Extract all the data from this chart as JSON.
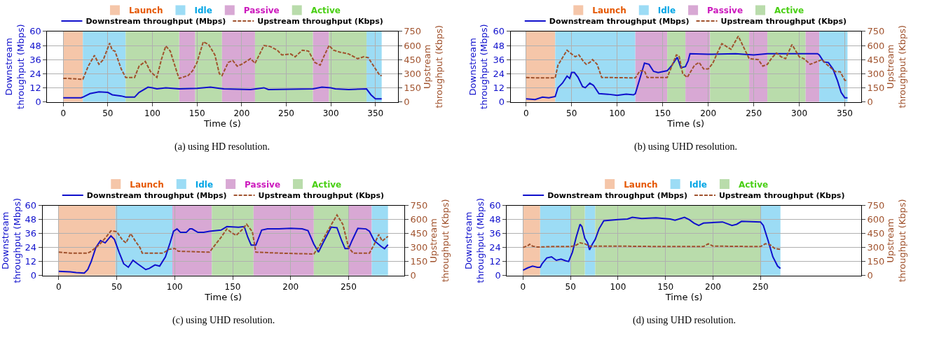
{
  "chart_data": [
    {
      "type": "line",
      "xlabel": "Time (s)",
      "ylabel": "Downstream throughput (Mbps)",
      "y2label": "Upstream throughput (Kbps)",
      "xlim": [
        -18,
        375
      ],
      "xticks": [
        0,
        50,
        100,
        150,
        200,
        250,
        300,
        350
      ],
      "ylim": [
        0,
        60
      ],
      "yticks": [
        0,
        12,
        24,
        36,
        48,
        60
      ],
      "y2lim": [
        0,
        750
      ],
      "y2ticks": [
        0,
        150,
        300,
        450,
        600,
        750
      ],
      "grid": true,
      "legend": "top",
      "annotations": [
        "(a) using HD resolution."
      ],
      "bands": [
        {
          "axis": "x",
          "from": 0,
          "to": 22,
          "label": "Launch",
          "color": "#f5c6a9"
        },
        {
          "axis": "x",
          "from": 22,
          "to": 70,
          "label": "Idle",
          "color": "#9cdcf5"
        },
        {
          "axis": "x",
          "from": 130,
          "to": 148,
          "label": "Passive",
          "color": "#d8a8d4"
        },
        {
          "axis": "x",
          "from": 70,
          "to": 130,
          "label": "Active",
          "color": "#b9dcab"
        },
        {
          "axis": "x",
          "from": 148,
          "to": 178,
          "color": "#b9dcab"
        },
        {
          "axis": "x",
          "from": 178,
          "to": 215,
          "color": "#d8a8d4"
        },
        {
          "axis": "x",
          "from": 215,
          "to": 280,
          "color": "#b9dcab"
        },
        {
          "axis": "x",
          "from": 280,
          "to": 298,
          "color": "#d8a8d4"
        },
        {
          "axis": "x",
          "from": 298,
          "to": 340,
          "color": "#b9dcab"
        },
        {
          "axis": "x",
          "from": 340,
          "to": 357,
          "color": "#9cdcf5"
        }
      ],
      "series": [
        {
          "name": "Downstream throughput (Mbps)",
          "color": "#1010cc",
          "line_style": "solid",
          "x": [
            0,
            20,
            22,
            30,
            40,
            50,
            55,
            65,
            70,
            80,
            85,
            95,
            100,
            105,
            115,
            130,
            150,
            165,
            175,
            180,
            210,
            225,
            230,
            280,
            290,
            300,
            305,
            320,
            340,
            345,
            350,
            357
          ],
          "values": [
            3.5,
            3.5,
            4,
            7,
            8.5,
            8,
            6,
            5,
            4,
            4,
            8,
            12.5,
            12,
            11,
            12,
            11,
            11.5,
            12.5,
            11.5,
            11,
            10.5,
            12,
            10.5,
            11,
            12.5,
            12,
            11,
            10.5,
            11,
            6,
            2.5,
            2.5
          ]
        },
        {
          "name": "Upstream throughput (Kbps)",
          "color": "#a0522d",
          "line_style": "dashed",
          "axis": "y2",
          "x": [
            0,
            5,
            20,
            22,
            28,
            35,
            40,
            45,
            52,
            55,
            58,
            65,
            70,
            80,
            85,
            92,
            98,
            105,
            110,
            115,
            120,
            128,
            130,
            140,
            145,
            150,
            157,
            163,
            170,
            175,
            178,
            185,
            190,
            195,
            200,
            210,
            215,
            225,
            232,
            240,
            245,
            255,
            260,
            268,
            275,
            282,
            288,
            292,
            298,
            303,
            310,
            320,
            330,
            337,
            342,
            348,
            355,
            357
          ],
          "values": [
            250,
            250,
            240,
            240,
            380,
            495,
            400,
            450,
            625,
            550,
            540,
            350,
            260,
            260,
            380,
            430,
            320,
            260,
            450,
            595,
            540,
            300,
            250,
            280,
            330,
            420,
            640,
            610,
            500,
            300,
            280,
            420,
            440,
            380,
            400,
            460,
            410,
            600,
            590,
            550,
            500,
            510,
            480,
            550,
            540,
            420,
            390,
            480,
            600,
            550,
            530,
            510,
            460,
            480,
            470,
            380,
            280,
            280
          ]
        }
      ]
    },
    {
      "type": "line",
      "xlabel": "Time (s)",
      "ylabel": "Downstream throughput (Mbps)",
      "y2label": "Upstream throughput (Kbps)",
      "xlim": [
        -17,
        368
      ],
      "xticks": [
        0,
        50,
        100,
        150,
        200,
        250,
        300,
        350
      ],
      "ylim": [
        0,
        60
      ],
      "yticks": [
        0,
        12,
        24,
        36,
        48,
        60
      ],
      "y2lim": [
        0,
        750
      ],
      "y2ticks": [
        0,
        150,
        300,
        450,
        600,
        750
      ],
      "grid": true,
      "legend": "top",
      "annotations": [
        "(b) using UHD resolution."
      ],
      "bands": [
        {
          "axis": "x",
          "from": 0,
          "to": 32,
          "label": "Launch",
          "color": "#f5c6a9"
        },
        {
          "axis": "x",
          "from": 32,
          "to": 120,
          "label": "Idle",
          "color": "#9cdcf5"
        },
        {
          "axis": "x",
          "from": 120,
          "to": 155,
          "label": "Passive",
          "color": "#d8a8d4"
        },
        {
          "axis": "x",
          "from": 155,
          "to": 175,
          "label": "Active",
          "color": "#b9dcab"
        },
        {
          "axis": "x",
          "from": 175,
          "to": 202,
          "color": "#d8a8d4"
        },
        {
          "axis": "x",
          "from": 202,
          "to": 245,
          "color": "#b9dcab"
        },
        {
          "axis": "x",
          "from": 245,
          "to": 265,
          "color": "#d8a8d4"
        },
        {
          "axis": "x",
          "from": 265,
          "to": 307,
          "color": "#b9dcab"
        },
        {
          "axis": "x",
          "from": 307,
          "to": 322,
          "color": "#d8a8d4"
        },
        {
          "axis": "x",
          "from": 322,
          "to": 353,
          "color": "#9cdcf5"
        }
      ],
      "series": [
        {
          "name": "Downstream throughput (Mbps)",
          "color": "#1010cc",
          "line_style": "solid",
          "x": [
            0,
            10,
            18,
            25,
            32,
            35,
            40,
            45,
            48,
            50,
            53,
            57,
            62,
            65,
            70,
            74,
            80,
            90,
            100,
            110,
            118,
            120,
            125,
            130,
            135,
            140,
            145,
            155,
            160,
            166,
            170,
            175,
            178,
            180,
            200,
            230,
            250,
            265,
            300,
            320,
            322,
            327,
            332,
            337,
            342,
            346,
            350,
            353
          ],
          "values": [
            2.5,
            2,
            4,
            3.5,
            4.5,
            12,
            16,
            22,
            20,
            25,
            25,
            21,
            13,
            12,
            16,
            14,
            7,
            6.5,
            5.5,
            6.5,
            6,
            7,
            20,
            33,
            32,
            26,
            25,
            26.5,
            31,
            38,
            29,
            30,
            35,
            41,
            40.5,
            41,
            40,
            41,
            41,
            41,
            40,
            34,
            33.5,
            28,
            18,
            8,
            3.5,
            3.5
          ]
        },
        {
          "name": "Upstream throughput (Kbps)",
          "color": "#a0522d",
          "line_style": "dashed",
          "axis": "y2",
          "x": [
            0,
            10,
            32,
            35,
            40,
            45,
            50,
            54,
            58,
            63,
            66,
            70,
            73,
            78,
            83,
            120,
            125,
            130,
            133,
            155,
            160,
            165,
            168,
            172,
            177,
            185,
            190,
            195,
            200,
            205,
            210,
            215,
            220,
            225,
            233,
            240,
            245,
            255,
            260,
            265,
            270,
            275,
            280,
            285,
            292,
            300,
            305,
            312,
            320,
            325,
            330,
            335,
            340,
            345,
            350,
            353
          ],
          "values": [
            260,
            255,
            255,
            390,
            470,
            550,
            510,
            480,
            500,
            430,
            400,
            420,
            450,
            400,
            260,
            255,
            330,
            330,
            260,
            260,
            380,
            500,
            490,
            300,
            260,
            390,
            420,
            350,
            350,
            410,
            520,
            620,
            590,
            560,
            700,
            560,
            460,
            450,
            380,
            400,
            470,
            520,
            480,
            460,
            610,
            480,
            460,
            400,
            430,
            450,
            400,
            360,
            320,
            320,
            230,
            230
          ]
        }
      ]
    },
    {
      "type": "line",
      "xlabel": "Time (s)",
      "ylabel": "Downstream throughput (Mbps)",
      "y2label": "Upstream throughput (Kbps)",
      "xlim": [
        -14,
        298
      ],
      "xticks": [
        0,
        50,
        100,
        150,
        200,
        250
      ],
      "ylim": [
        0,
        60
      ],
      "yticks": [
        0,
        12,
        24,
        36,
        48,
        60
      ],
      "y2lim": [
        0,
        750
      ],
      "y2ticks": [
        0,
        150,
        300,
        450,
        600,
        750
      ],
      "grid": true,
      "legend": "top",
      "annotations": [
        "(c) using UHD resolution."
      ],
      "bands": [
        {
          "axis": "x",
          "from": 0,
          "to": 49,
          "label": "Launch",
          "color": "#f5c6a9"
        },
        {
          "axis": "x",
          "from": 49,
          "to": 98,
          "label": "Idle",
          "color": "#9cdcf5"
        },
        {
          "axis": "x",
          "from": 98,
          "to": 132,
          "label": "Passive",
          "color": "#d8a8d4"
        },
        {
          "axis": "x",
          "from": 132,
          "to": 168,
          "label": "Active",
          "color": "#b9dcab"
        },
        {
          "axis": "x",
          "from": 168,
          "to": 220,
          "color": "#d8a8d4"
        },
        {
          "axis": "x",
          "from": 220,
          "to": 250,
          "color": "#b9dcab"
        },
        {
          "axis": "x",
          "from": 250,
          "to": 270,
          "color": "#d8a8d4"
        },
        {
          "axis": "x",
          "from": 270,
          "to": 284,
          "color": "#9cdcf5"
        }
      ],
      "series": [
        {
          "name": "Downstream throughput (Mbps)",
          "color": "#1010cc",
          "line_style": "solid",
          "x": [
            0,
            10,
            15,
            22,
            25,
            28,
            32,
            36,
            40,
            45,
            48,
            52,
            56,
            60,
            64,
            68,
            75,
            78,
            83,
            87,
            92,
            96,
            99,
            102,
            105,
            110,
            113,
            115,
            120,
            125,
            130,
            140,
            145,
            155,
            160,
            163,
            166,
            170,
            175,
            180,
            190,
            200,
            210,
            215,
            220,
            224,
            228,
            235,
            240,
            244,
            247,
            250,
            253,
            258,
            265,
            268,
            272,
            278,
            281,
            284
          ],
          "values": [
            3.5,
            3,
            2.5,
            2,
            5,
            12,
            24,
            30,
            28,
            34,
            31,
            20,
            10,
            7,
            13,
            10,
            5,
            6,
            9,
            8,
            16,
            28,
            38,
            40,
            37,
            37,
            40,
            40,
            37,
            37,
            38,
            39,
            42,
            41.5,
            42,
            33,
            26,
            26,
            39,
            40,
            40,
            40.5,
            40,
            38.5,
            27,
            20,
            28,
            41.5,
            41,
            30,
            23,
            23,
            30,
            40.5,
            40,
            38,
            30,
            25,
            23,
            26.5
          ]
        },
        {
          "name": "Upstream throughput (Kbps)",
          "color": "#a0522d",
          "line_style": "dashed",
          "axis": "y2",
          "x": [
            0,
            10,
            25,
            28,
            35,
            40,
            45,
            50,
            55,
            58,
            62,
            66,
            70,
            72,
            90,
            95,
            100,
            103,
            130,
            135,
            140,
            145,
            149,
            153,
            158,
            162,
            167,
            170,
            190,
            220,
            225,
            232,
            240,
            245,
            250,
            254,
            268,
            272,
            276,
            279,
            284
          ],
          "values": [
            250,
            240,
            240,
            260,
            330,
            400,
            480,
            470,
            380,
            350,
            450,
            370,
            300,
            240,
            240,
            280,
            290,
            260,
            250,
            330,
            410,
            500,
            460,
            430,
            490,
            550,
            470,
            250,
            240,
            230,
            320,
            480,
            650,
            550,
            300,
            240,
            240,
            330,
            440,
            370,
            420
          ]
        }
      ]
    },
    {
      "type": "line",
      "xlabel": "Time (s)",
      "ylabel": "Downstream throughput (Mbps)",
      "y2label": "Upstream throughput (Kbps)",
      "xlim": [
        -17,
        356
      ],
      "xticks": [
        0,
        50,
        100,
        150,
        200,
        250
      ],
      "ylim": [
        0,
        60
      ],
      "yticks": [
        0,
        12,
        24,
        36,
        48,
        60
      ],
      "y2lim": [
        0,
        750
      ],
      "y2ticks": [
        0,
        150,
        300,
        450,
        600,
        750
      ],
      "grid": true,
      "legend": "top",
      "annotations": [
        "(d) using UHD resolution."
      ],
      "bands": [
        {
          "axis": "x",
          "from": 0,
          "to": 18,
          "label": "Launch",
          "color": "#f5c6a9"
        },
        {
          "axis": "x",
          "from": 18,
          "to": 50,
          "label": "Idle",
          "color": "#9cdcf5"
        },
        {
          "axis": "x",
          "from": 65,
          "to": 76,
          "color": "#9cdcf5"
        },
        {
          "axis": "x",
          "from": 50,
          "to": 65,
          "label": "Active",
          "color": "#b9dcab"
        },
        {
          "axis": "x",
          "from": 76,
          "to": 250,
          "color": "#b9dcab"
        },
        {
          "axis": "x",
          "from": 250,
          "to": 271,
          "color": "#9cdcf5"
        }
      ],
      "series": [
        {
          "name": "Downstream throughput (Mbps)",
          "color": "#1010cc",
          "line_style": "solid",
          "x": [
            0,
            5,
            10,
            15,
            18,
            20,
            25,
            30,
            35,
            40,
            45,
            48,
            52,
            56,
            60,
            62,
            65,
            68,
            70,
            73,
            76,
            80,
            85,
            100,
            110,
            115,
            125,
            140,
            155,
            160,
            170,
            175,
            180,
            185,
            190,
            210,
            220,
            225,
            230,
            250,
            253,
            258,
            263,
            268,
            271
          ],
          "values": [
            4.5,
            6.5,
            8,
            7,
            7,
            10,
            15,
            16,
            13,
            14,
            12.5,
            12,
            20,
            33,
            44,
            42,
            32,
            28,
            22,
            27,
            31,
            40,
            47,
            48,
            48.5,
            50,
            49,
            49.5,
            48.5,
            47.5,
            50,
            48,
            45,
            43,
            45,
            46,
            43,
            44,
            46.5,
            46,
            43,
            30,
            16,
            8,
            6
          ]
        },
        {
          "name": "Upstream throughput (Kbps)",
          "color": "#a0522d",
          "line_style": "dashed",
          "axis": "y2",
          "x": [
            0,
            5,
            7,
            10,
            15,
            30,
            50,
            55,
            60,
            65,
            70,
            100,
            150,
            190,
            195,
            200,
            250,
            255,
            260,
            265,
            271
          ],
          "values": [
            300,
            320,
            335,
            315,
            305,
            310,
            310,
            320,
            350,
            340,
            315,
            315,
            310,
            310,
            340,
            315,
            310,
            340,
            330,
            290,
            280
          ]
        }
      ]
    }
  ]
}
